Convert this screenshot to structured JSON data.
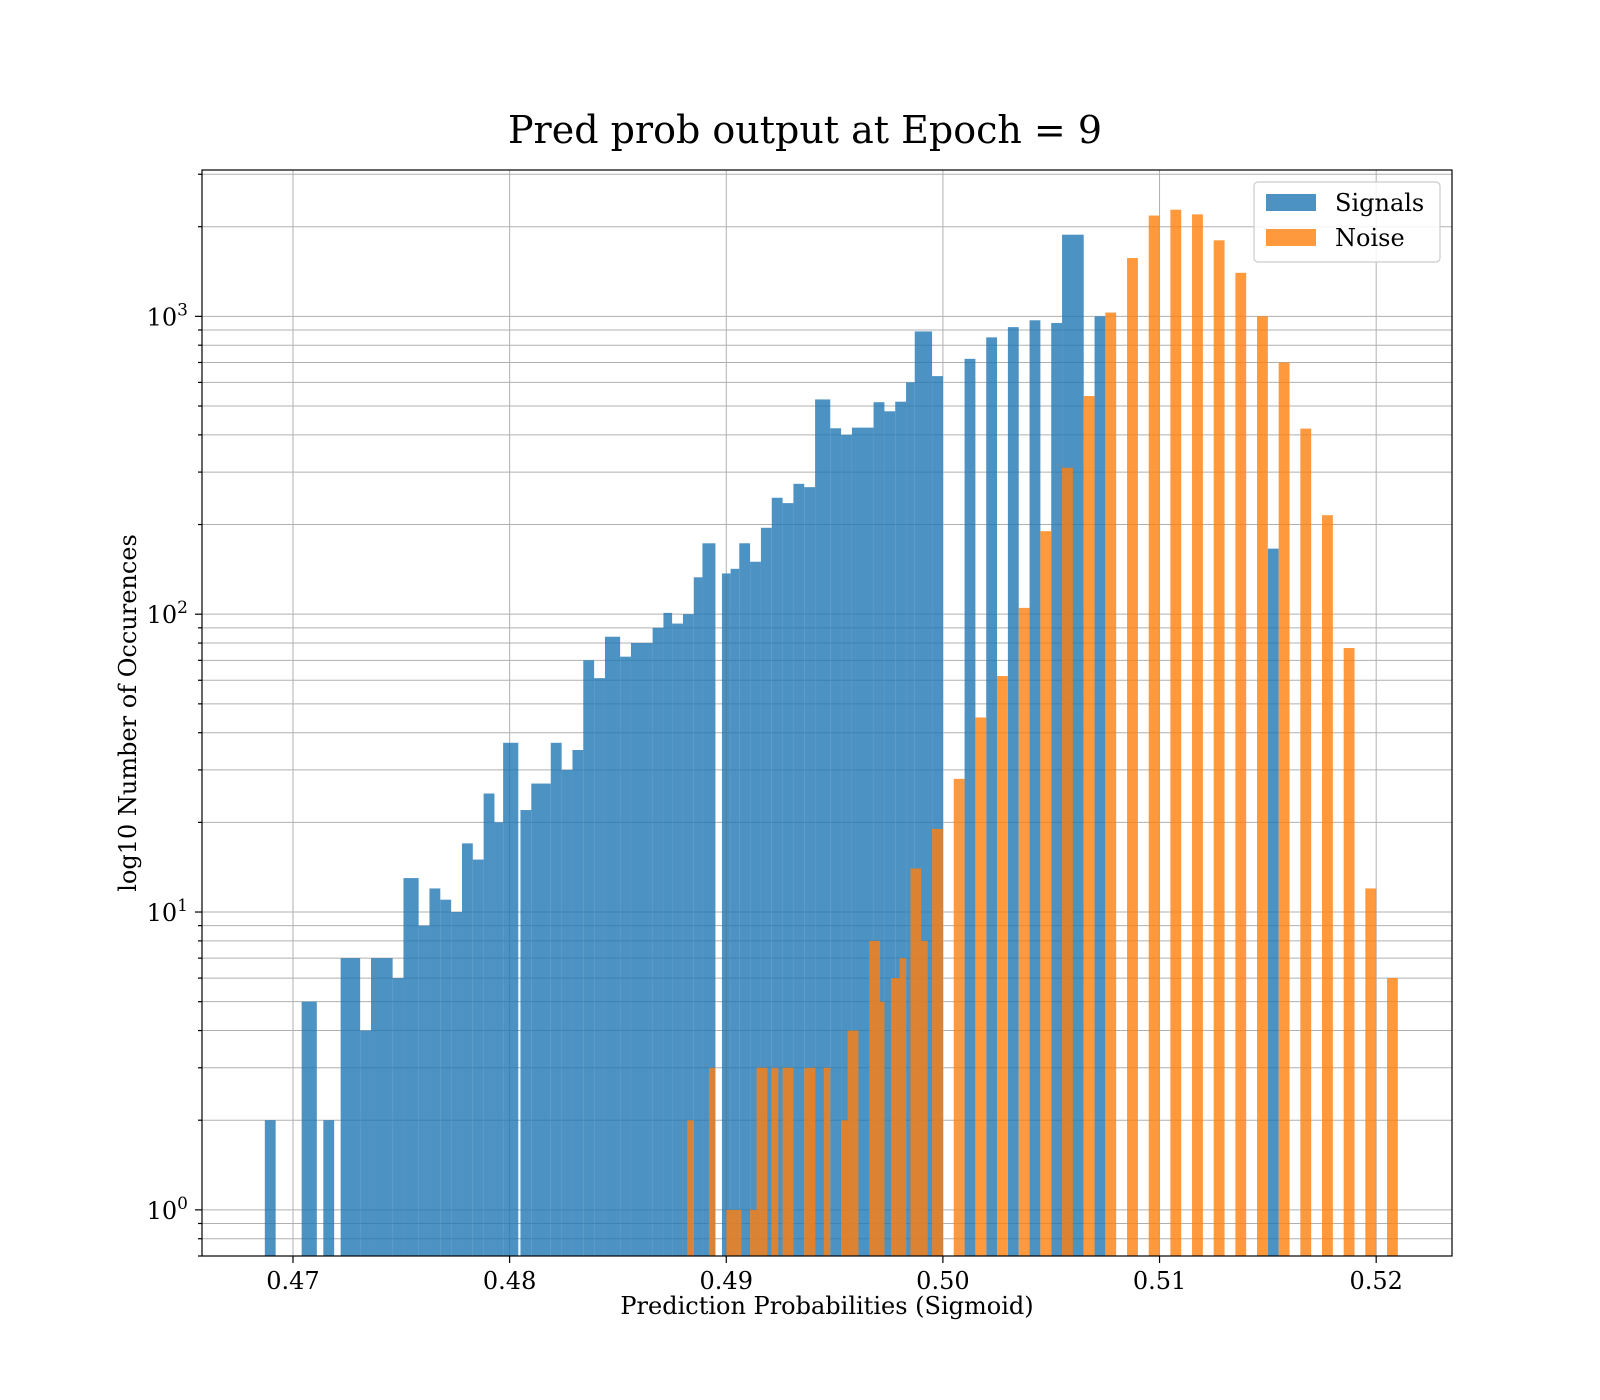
{
  "chart_data": {
    "type": "bar",
    "title": "Pred prob output at Epoch = 9",
    "xlabel": "Prediction Probabilities (Sigmoid)",
    "ylabel": "log10 Number of Occurences",
    "xlim": [
      0.4658,
      0.5235
    ],
    "ylim": [
      0.7,
      3100
    ],
    "yscale": "log",
    "x_ticks": [
      0.47,
      0.48,
      0.49,
      0.5,
      0.51,
      0.52
    ],
    "x_tick_labels": [
      "0.47",
      "0.48",
      "0.49",
      "0.50",
      "0.51",
      "0.52"
    ],
    "y_ticks": [
      {
        "base": "10",
        "exp": "0",
        "value": 1
      },
      {
        "base": "10",
        "exp": "1",
        "value": 10
      },
      {
        "base": "10",
        "exp": "2",
        "value": 100
      },
      {
        "base": "10",
        "exp": "3",
        "value": 1000
      }
    ],
    "grid": true,
    "legend_position": "top-right",
    "series": [
      {
        "name": "Signals",
        "color": "#1f77b4",
        "opacity": 0.8,
        "bins": [
          [
            0.4687,
            0.4692,
            2
          ],
          [
            0.4704,
            0.4711,
            5
          ],
          [
            0.4714,
            0.4719,
            2
          ],
          [
            0.4722,
            0.4731,
            7
          ],
          [
            0.4731,
            0.4736,
            4
          ],
          [
            0.4736,
            0.4746,
            7
          ],
          [
            0.4746,
            0.4751,
            6
          ],
          [
            0.4751,
            0.4758,
            13
          ],
          [
            0.4758,
            0.4763,
            9
          ],
          [
            0.4763,
            0.4768,
            12
          ],
          [
            0.4768,
            0.4773,
            11
          ],
          [
            0.4773,
            0.4778,
            10
          ],
          [
            0.4778,
            0.4783,
            17
          ],
          [
            0.4783,
            0.4788,
            15
          ],
          [
            0.4788,
            0.4793,
            25
          ],
          [
            0.4793,
            0.4797,
            20
          ],
          [
            0.4797,
            0.4804,
            37
          ],
          [
            0.4805,
            0.481,
            22
          ],
          [
            0.481,
            0.4819,
            27
          ],
          [
            0.4819,
            0.4824,
            37
          ],
          [
            0.4824,
            0.4829,
            30
          ],
          [
            0.4829,
            0.4834,
            35
          ],
          [
            0.4834,
            0.4839,
            70
          ],
          [
            0.4839,
            0.4844,
            61
          ],
          [
            0.4844,
            0.4851,
            84
          ],
          [
            0.4851,
            0.4856,
            72
          ],
          [
            0.4856,
            0.4866,
            80
          ],
          [
            0.4866,
            0.4871,
            90
          ],
          [
            0.4871,
            0.4875,
            101
          ],
          [
            0.4875,
            0.488,
            93
          ],
          [
            0.488,
            0.4885,
            100
          ],
          [
            0.4885,
            0.4889,
            133
          ],
          [
            0.4889,
            0.4895,
            173
          ],
          [
            0.4898,
            0.4902,
            137
          ],
          [
            0.4902,
            0.4906,
            142
          ],
          [
            0.4906,
            0.4911,
            173
          ],
          [
            0.4911,
            0.4916,
            150
          ],
          [
            0.4916,
            0.4921,
            195
          ],
          [
            0.4921,
            0.4926,
            246
          ],
          [
            0.4926,
            0.4931,
            236
          ],
          [
            0.4931,
            0.4936,
            274
          ],
          [
            0.4936,
            0.4941,
            267
          ],
          [
            0.4941,
            0.4948,
            526
          ],
          [
            0.4948,
            0.4953,
            421
          ],
          [
            0.4953,
            0.4958,
            400
          ],
          [
            0.4958,
            0.4968,
            423
          ],
          [
            0.4968,
            0.4973,
            515
          ],
          [
            0.4973,
            0.4978,
            480
          ],
          [
            0.4978,
            0.4983,
            517
          ],
          [
            0.4983,
            0.4987,
            600
          ],
          [
            0.4987,
            0.4995,
            890
          ],
          [
            0.4995,
            0.5,
            630
          ],
          [
            0.501,
            0.5015,
            720
          ],
          [
            0.502,
            0.5025,
            850
          ],
          [
            0.503,
            0.5035,
            920
          ],
          [
            0.504,
            0.5045,
            970
          ],
          [
            0.505,
            0.5055,
            950
          ],
          [
            0.5055,
            0.5065,
            1880
          ],
          [
            0.507,
            0.5075,
            1000
          ],
          [
            0.515,
            0.5155,
            166
          ]
        ]
      },
      {
        "name": "Noise",
        "color": "#ff7f0e",
        "opacity": 0.8,
        "bins": [
          [
            0.4882,
            0.4885,
            2
          ],
          [
            0.4892,
            0.4895,
            3
          ],
          [
            0.49,
            0.4907,
            1
          ],
          [
            0.4911,
            0.4914,
            1
          ],
          [
            0.4914,
            0.4919,
            3
          ],
          [
            0.4921,
            0.4924,
            3
          ],
          [
            0.4926,
            0.4931,
            3
          ],
          [
            0.4936,
            0.4941,
            3
          ],
          [
            0.4945,
            0.4948,
            3
          ],
          [
            0.4953,
            0.4956,
            2
          ],
          [
            0.4956,
            0.4961,
            4
          ],
          [
            0.4966,
            0.4971,
            8
          ],
          [
            0.4971,
            0.4973,
            5
          ],
          [
            0.4976,
            0.498,
            6
          ],
          [
            0.498,
            0.4983,
            7
          ],
          [
            0.4985,
            0.499,
            14
          ],
          [
            0.499,
            0.4993,
            8
          ],
          [
            0.4995,
            0.5,
            19
          ],
          [
            0.5005,
            0.501,
            28
          ],
          [
            0.5015,
            0.502,
            45
          ],
          [
            0.5025,
            0.503,
            62
          ],
          [
            0.5035,
            0.504,
            105
          ],
          [
            0.5045,
            0.505,
            190
          ],
          [
            0.5055,
            0.506,
            310
          ],
          [
            0.5065,
            0.507,
            540
          ],
          [
            0.5075,
            0.508,
            1030
          ],
          [
            0.5085,
            0.509,
            1570
          ],
          [
            0.5095,
            0.51,
            2180
          ],
          [
            0.5105,
            0.511,
            2280
          ],
          [
            0.5115,
            0.512,
            2200
          ],
          [
            0.5125,
            0.513,
            1800
          ],
          [
            0.5135,
            0.514,
            1400
          ],
          [
            0.5145,
            0.515,
            1000
          ],
          [
            0.5155,
            0.516,
            700
          ],
          [
            0.5165,
            0.517,
            420
          ],
          [
            0.5175,
            0.518,
            215
          ],
          [
            0.5185,
            0.519,
            77
          ],
          [
            0.5195,
            0.52,
            12
          ],
          [
            0.5205,
            0.521,
            6
          ]
        ]
      }
    ]
  }
}
